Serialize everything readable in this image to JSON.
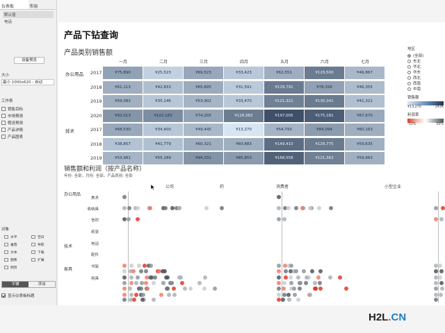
{
  "sidebar": {
    "tabs": [
      "仪表板",
      "布局"
    ],
    "devices": [
      "默认值",
      "电话"
    ],
    "preview_button": "设备预览",
    "size_label": "大小",
    "size_value": "最小 1000x620 - 自动",
    "worksheets_title": "工作表",
    "worksheets": [
      "销售目标",
      "市场预测",
      "假设预测",
      "产品详情",
      "产品图表"
    ],
    "objects_title": "对象",
    "objects": [
      "水平",
      "空白",
      "垂直",
      "导航",
      "文本",
      "下载",
      "图像",
      "扩展",
      "网页"
    ],
    "mode_buttons": [
      "平铺",
      "浮动"
    ],
    "show_title": "显示仪表板标题"
  },
  "dashboard": {
    "title": "产品下钻查询",
    "heatmap_title": "产品类别销售额",
    "scatter_title": "销售额和利润（按产品名称）",
    "scatter_filters": "年份: 全部。月份: 全部。产品类别: 全部",
    "scatter_segments": [
      "公司",
      "消费者",
      "小型企业"
    ],
    "scatter_partial": "药"
  },
  "legend": {
    "region_title": "地区",
    "regions": [
      "(全部)",
      "东北",
      "华北",
      "华东",
      "西北",
      "西南",
      "中南"
    ],
    "sales_title": "销售额",
    "sales_min": "¥13,270",
    "sales_max": "243K",
    "profit_title": "利润率",
    "profit_min": "-50%",
    "profit_max": "50%"
  },
  "chart_data": {
    "type": "heatmap",
    "columns": [
      "一月",
      "二月",
      "三月",
      "四月",
      "五月",
      "六月",
      "七月"
    ],
    "rows": [
      {
        "category": "办公用品",
        "year": "2017",
        "values": [
          "¥75,890",
          "¥25,523",
          "¥69,523",
          "¥33,423",
          "¥62,551",
          "¥129,500",
          "¥49,867"
        ]
      },
      {
        "category": "",
        "year": "2018",
        "values": [
          "¥61,113",
          "¥42,833",
          "¥65,605",
          "¥31,591",
          "¥129,791",
          "¥78,326",
          "¥46,355"
        ]
      },
      {
        "category": "",
        "year": "2019",
        "values": [
          "¥59,083",
          "¥35,146",
          "¥53,902",
          "¥33,470",
          "¥121,321",
          "¥130,341",
          "¥41,321"
        ]
      },
      {
        "category": "",
        "year": "2020",
        "values": [
          "¥93,013",
          "¥102,183",
          "¥74,205",
          "¥126,982",
          "¥197,005",
          "¥175,181",
          "¥67,670"
        ]
      },
      {
        "category": "技术",
        "year": "2017",
        "values": [
          "¥68,530",
          "¥34,400",
          "¥49,445",
          "¥13,270",
          "¥54,793",
          "¥84,094",
          "¥60,163"
        ]
      },
      {
        "category": "",
        "year": "2018",
        "values": [
          "¥38,857",
          "¥41,779",
          "¥60,321",
          "¥60,883",
          "¥149,410",
          "¥129,775",
          "¥59,635"
        ]
      },
      {
        "category": "",
        "year": "2019",
        "values": [
          "¥53,981",
          "¥55,189",
          "¥94,331",
          "¥85,853",
          "¥168,558",
          "¥121,363",
          "¥59,663"
        ]
      }
    ],
    "scatter": {
      "categories": [
        {
          "name": "办公用品",
          "subcategories": [
            "美术",
            "收纳具",
            "信封",
            "纸张"
          ]
        },
        {
          "name": "技术",
          "subcategories": [
            "电话",
            "配件"
          ]
        },
        {
          "name": "家具",
          "subcategories": [
            "书架",
            "用具"
          ]
        }
      ]
    }
  }
}
